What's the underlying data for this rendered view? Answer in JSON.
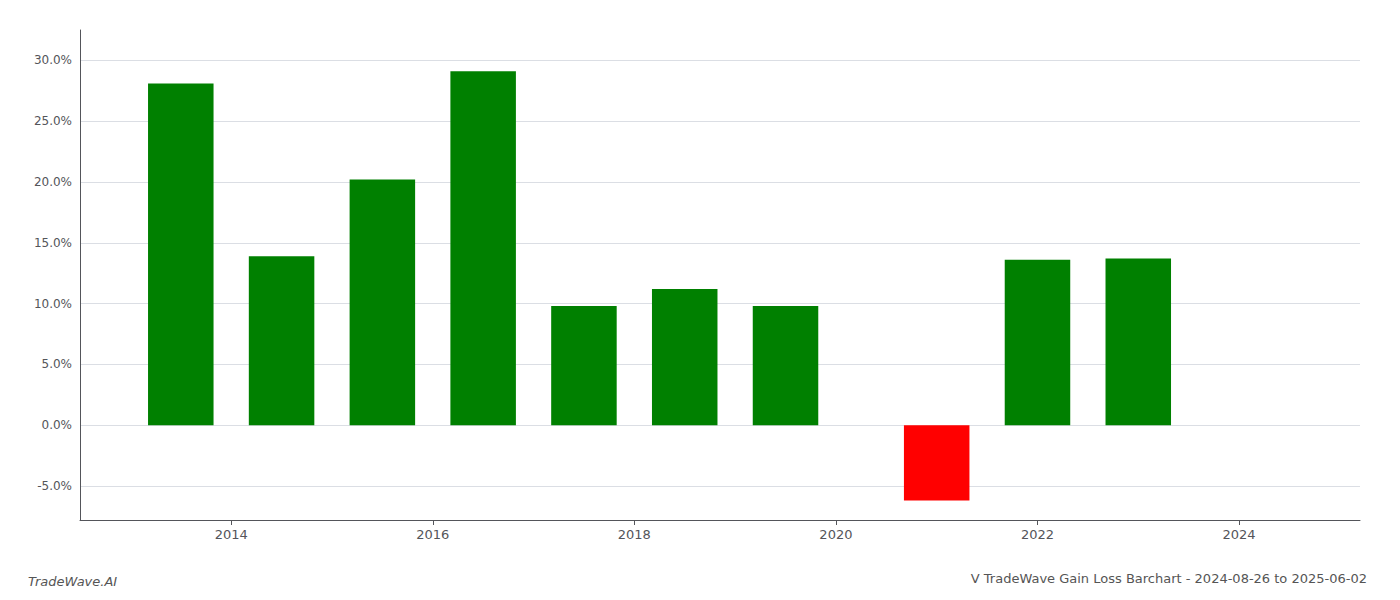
{
  "chart_data": {
    "type": "bar",
    "title": "V TradeWave Gain Loss Barchart - 2024-08-26 to 2025-06-02",
    "annotations": [
      "TradeWave.AI"
    ],
    "x": [
      2013.5,
      2014.5,
      2015.5,
      2016.5,
      2017.5,
      2018.5,
      2019.5,
      2021.0,
      2022.0,
      2023.0
    ],
    "values": [
      0.281,
      0.139,
      0.202,
      0.291,
      0.098,
      0.112,
      0.098,
      -0.062,
      0.136,
      0.137
    ],
    "colors": [
      "#008000",
      "#008000",
      "#008000",
      "#008000",
      "#008000",
      "#008000",
      "#008000",
      "#ff0000",
      "#008000",
      "#008000"
    ],
    "xlim": [
      2012.5,
      2025.2
    ],
    "xticks": [
      2014,
      2016,
      2018,
      2020,
      2022,
      2024
    ],
    "ylim": [
      -0.078,
      0.325
    ],
    "yticks": [
      {
        "value": -0.05,
        "label": "-5.0%"
      },
      {
        "value": 0.0,
        "label": "0.0%"
      },
      {
        "value": 0.05,
        "label": "5.0%"
      },
      {
        "value": 0.1,
        "label": "10.0%"
      },
      {
        "value": 0.15,
        "label": "15.0%"
      },
      {
        "value": 0.2,
        "label": "20.0%"
      },
      {
        "value": 0.25,
        "label": "25.0%"
      },
      {
        "value": 0.3,
        "label": "30.0%"
      }
    ],
    "grid": true
  }
}
